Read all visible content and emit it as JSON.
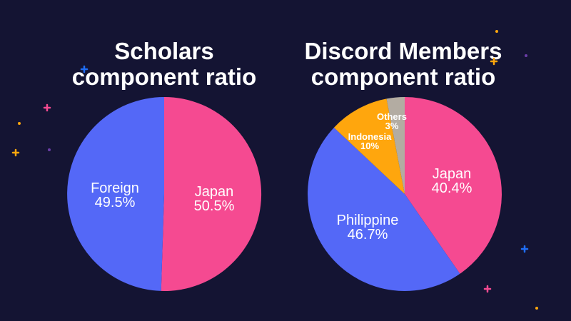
{
  "colors": {
    "background": "#141433",
    "japan": "#f54a91",
    "foreign": "#5468f7",
    "philippine": "#5468f7",
    "indonesia": "#ffa60d",
    "others": "#b3aca2",
    "sparkle_pink": "#f54a91",
    "sparkle_orange": "#ffa60d",
    "sparkle_blue": "#1f6df5",
    "sparkle_purple": "#6b3ea8"
  },
  "chart_data": [
    {
      "type": "pie",
      "title_lines": [
        "Scholars",
        "component ratio"
      ],
      "slices": [
        {
          "name": "Japan",
          "value": 50.5,
          "label": "50.5%",
          "color": "#f54a91"
        },
        {
          "name": "Foreign",
          "value": 49.5,
          "label": "49.5%",
          "color": "#5468f7"
        }
      ]
    },
    {
      "type": "pie",
      "title_lines": [
        "Discord Members",
        "component ratio"
      ],
      "slices": [
        {
          "name": "Japan",
          "value": 40.4,
          "label": "40.4%",
          "color": "#f54a91"
        },
        {
          "name": "Philippine",
          "value": 46.7,
          "label": "46.7%",
          "color": "#5468f7"
        },
        {
          "name": "Indonesia",
          "value": 10,
          "label": "10%",
          "color": "#ffa60d"
        },
        {
          "name": "Others",
          "value": 3,
          "label": "3%",
          "color": "#b3aca2"
        }
      ]
    }
  ]
}
